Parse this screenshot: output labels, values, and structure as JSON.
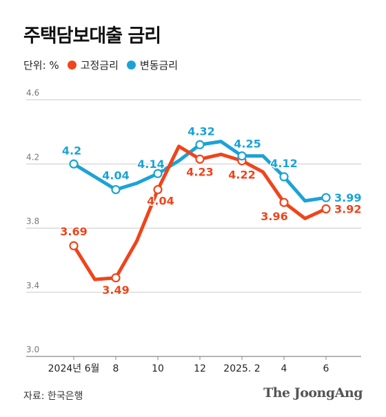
{
  "title": "주택담보대출 금리",
  "legend": {
    "unit": "단위: %",
    "items": [
      {
        "label": "고정금리",
        "color": "#f0441b"
      },
      {
        "label": "변동금리",
        "color": "#1ba3d6"
      }
    ]
  },
  "source": "자료: 한국은행",
  "brand": "The JoongAng",
  "chart_data": {
    "type": "line",
    "x": [
      0,
      1,
      2,
      3,
      4,
      5,
      6,
      7,
      8,
      9,
      10,
      11,
      12
    ],
    "x_tick_labels": [
      {
        "x": 0,
        "label": "2024년 6월"
      },
      {
        "x": 2,
        "label": "8"
      },
      {
        "x": 4,
        "label": "10"
      },
      {
        "x": 6,
        "label": "12"
      },
      {
        "x": 8,
        "label": "2025. 2"
      },
      {
        "x": 10,
        "label": "4"
      },
      {
        "x": 12,
        "label": "6"
      }
    ],
    "ylim": [
      3.0,
      4.6
    ],
    "y_ticks": [
      3.0,
      3.4,
      3.8,
      4.2,
      4.6
    ],
    "y_tick_labels": [
      "3.0",
      "3.4",
      "3.8",
      "4.2",
      "4.6"
    ],
    "grid": true,
    "series": [
      {
        "name": "고정금리",
        "color": "#f0441b",
        "values": [
          3.69,
          3.48,
          3.49,
          3.72,
          4.04,
          4.31,
          4.23,
          4.26,
          4.22,
          4.15,
          3.96,
          3.86,
          3.92
        ],
        "labeled_points": [
          {
            "x": 0,
            "label": "3.69"
          },
          {
            "x": 2,
            "label": "3.49"
          },
          {
            "x": 4,
            "label": "4.04"
          },
          {
            "x": 6,
            "label": "4.23"
          },
          {
            "x": 8,
            "label": "4.22"
          },
          {
            "x": 10,
            "label": "3.96"
          },
          {
            "x": 12,
            "label": "3.92"
          }
        ]
      },
      {
        "name": "변동금리",
        "color": "#1ba3d6",
        "values": [
          4.2,
          4.12,
          4.04,
          4.08,
          4.14,
          4.22,
          4.32,
          4.34,
          4.25,
          4.25,
          4.12,
          3.97,
          3.99
        ],
        "labeled_points": [
          {
            "x": 0,
            "label": "4.2"
          },
          {
            "x": 2,
            "label": "4.04"
          },
          {
            "x": 4,
            "label": "4.14"
          },
          {
            "x": 6,
            "label": "4.32"
          },
          {
            "x": 8,
            "label": "4.25"
          },
          {
            "x": 10,
            "label": "4.12"
          },
          {
            "x": 12,
            "label": "3.99"
          }
        ]
      }
    ]
  }
}
